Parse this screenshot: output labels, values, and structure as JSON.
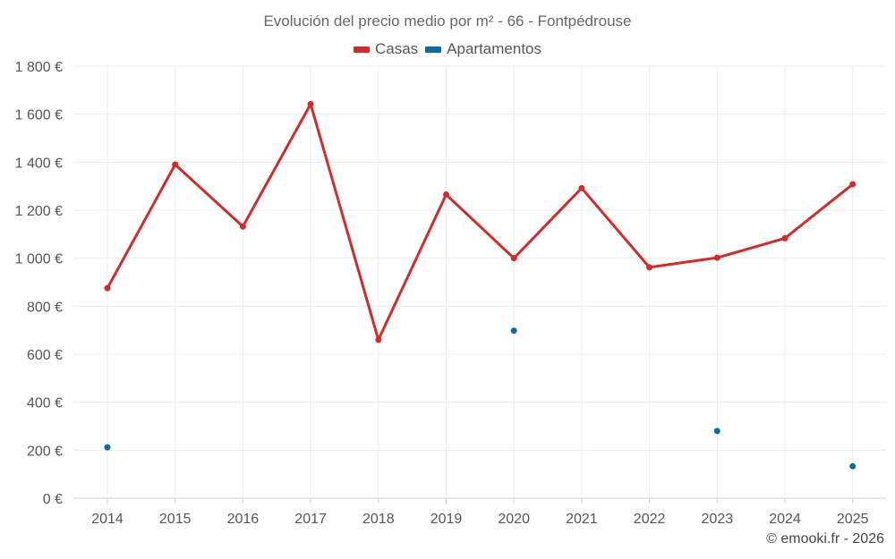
{
  "chart_data": {
    "type": "line",
    "title": "Evolución del precio medio por m² - 66 - Fontpédrouse",
    "categories": [
      "2014",
      "2015",
      "2016",
      "2017",
      "2018",
      "2019",
      "2020",
      "2021",
      "2022",
      "2023",
      "2024",
      "2025"
    ],
    "series": [
      {
        "name": "Casas",
        "color": "#d32a2a",
        "mode": "line+markers",
        "values": [
          875,
          1390,
          1132,
          1642,
          660,
          1265,
          1000,
          1292,
          962,
          1002,
          1083,
          1308
        ]
      },
      {
        "name": "Apartamentos",
        "color": "#0e6aa3",
        "mode": "markers",
        "values": [
          212,
          null,
          null,
          null,
          null,
          null,
          698,
          null,
          null,
          280,
          null,
          133
        ]
      }
    ],
    "ylim": [
      0,
      1800
    ],
    "yticks": [
      0,
      200,
      400,
      600,
      800,
      1000,
      1200,
      1400,
      1600,
      1800
    ],
    "ytick_labels": [
      "0 €",
      "200 €",
      "400 €",
      "600 €",
      "800 €",
      "1 000 €",
      "1 200 €",
      "1 400 €",
      "1 600 €",
      "1 800 €"
    ],
    "xlabel": "",
    "ylabel": "",
    "grid": true,
    "legend_position": "top-center"
  },
  "credit": "© emooki.fr - 2026"
}
